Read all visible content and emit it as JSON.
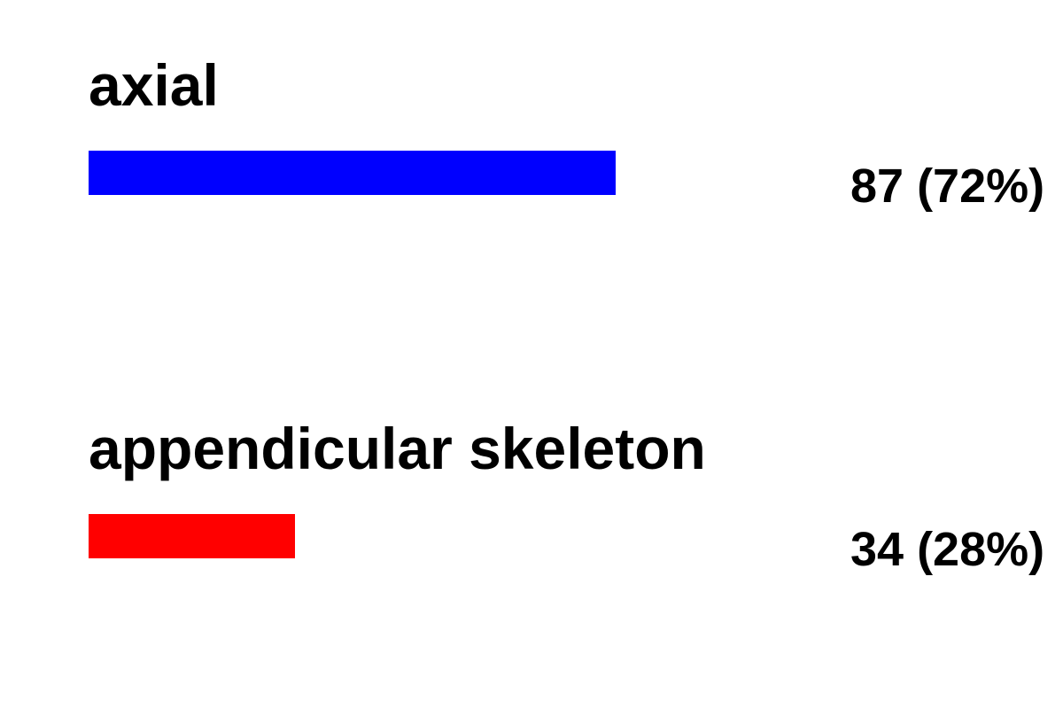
{
  "chart_data": {
    "type": "bar",
    "orientation": "horizontal",
    "categories": [
      "axial",
      "appendicular skeleton"
    ],
    "values": [
      87,
      34
    ],
    "value_labels": [
      "87 (72%)",
      "34 (28%)"
    ],
    "colors": [
      "#0000ff",
      "#ff0000"
    ],
    "xlim": [
      0,
      121
    ],
    "grid": false,
    "title": "",
    "xlabel": "",
    "ylabel": ""
  }
}
